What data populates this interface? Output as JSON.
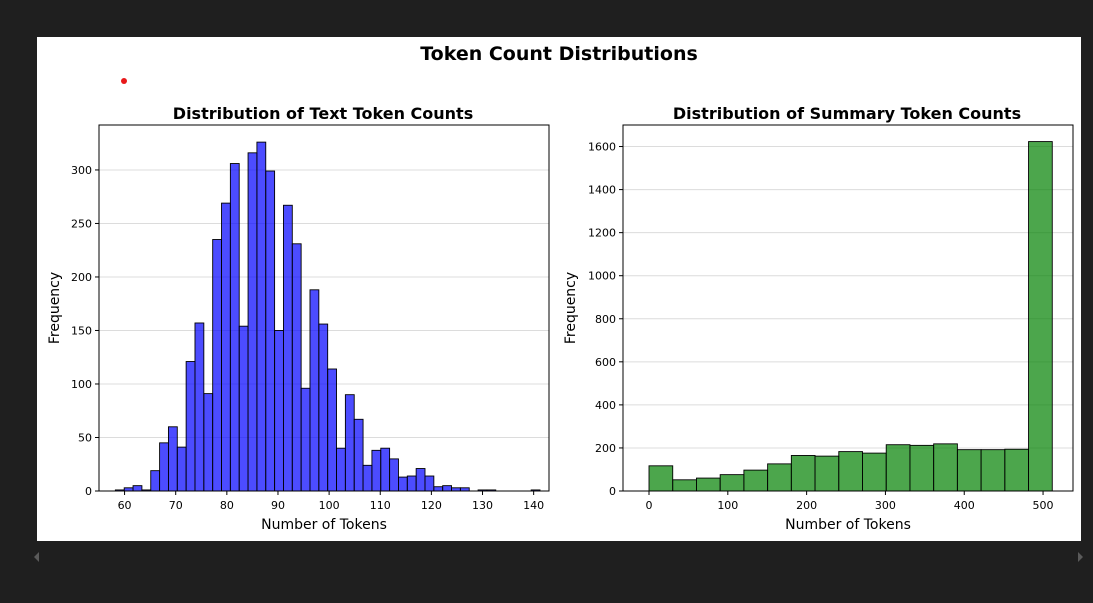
{
  "figure": {
    "suptitle": "Token Count Distributions"
  },
  "chart_data": [
    {
      "type": "bar",
      "title": "Distribution of Text Token Counts",
      "xlabel": "Number of Tokens",
      "ylabel": "Frequency",
      "color": "#0000ff",
      "xlim": [
        55,
        143
      ],
      "ylim": [
        0,
        342
      ],
      "xticks": [
        60,
        70,
        80,
        90,
        100,
        110,
        120,
        130,
        140
      ],
      "yticks": [
        0,
        50,
        100,
        150,
        200,
        250,
        300
      ],
      "grid": "y",
      "bin_width": 1.73,
      "bin_start": 58.2,
      "values": [
        1,
        3,
        5,
        1,
        19,
        45,
        60,
        41,
        121,
        157,
        91,
        235,
        269,
        306,
        154,
        316,
        326,
        299,
        150,
        267,
        231,
        96,
        188,
        156,
        114,
        40,
        90,
        67,
        24,
        38,
        40,
        30,
        13,
        14,
        21,
        14,
        4,
        5,
        3,
        3,
        0,
        1,
        1,
        0,
        0,
        0,
        0,
        1
      ]
    },
    {
      "type": "bar",
      "title": "Distribution of Summary Token Counts",
      "xlabel": "Number of Tokens",
      "ylabel": "Frequency",
      "color": "#008000",
      "xlim": [
        -33,
        538
      ],
      "ylim": [
        0,
        1700
      ],
      "xticks": [
        0,
        100,
        200,
        300,
        400,
        500
      ],
      "yticks": [
        0,
        200,
        400,
        600,
        800,
        1000,
        1200,
        1400,
        1600
      ],
      "grid": "y",
      "bin_width": 30.1,
      "bin_start": 0,
      "values": [
        117,
        52,
        60,
        76,
        97,
        126,
        165,
        162,
        183,
        176,
        215,
        212,
        219,
        192,
        192,
        194,
        1623
      ]
    }
  ]
}
